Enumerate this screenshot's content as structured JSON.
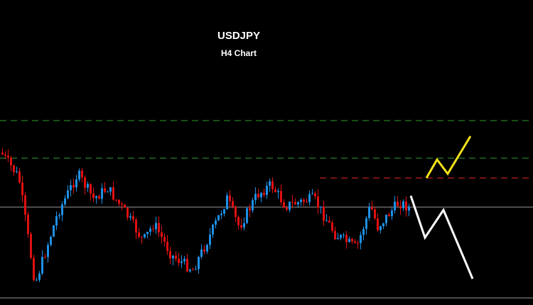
{
  "header": {
    "title": "USDJPY",
    "subtitle": "H4 Chart"
  }
}
